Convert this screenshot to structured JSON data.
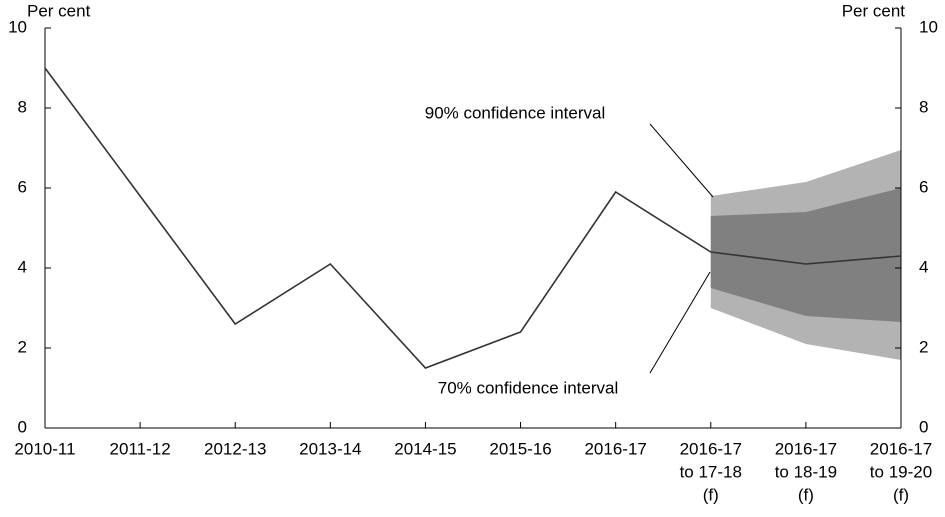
{
  "chart_data": {
    "type": "line",
    "ylabel": "Per cent",
    "y2label": "Per cent",
    "categories": [
      [
        "2010-11"
      ],
      [
        "2011-12"
      ],
      [
        "2012-13"
      ],
      [
        "2013-14"
      ],
      [
        "2014-15"
      ],
      [
        "2015-16"
      ],
      [
        "2016-17"
      ],
      [
        "2016-17",
        "to 17-18",
        "(f)"
      ],
      [
        "2016-17",
        "to 18-19",
        "(f)"
      ],
      [
        "2016-17",
        "to 19-20",
        "(f)"
      ]
    ],
    "series": [
      {
        "color": "#333333",
        "values": [
          9.0,
          5.8,
          2.6,
          4.1,
          1.5,
          2.4,
          5.9,
          4.4,
          4.1,
          4.3
        ]
      }
    ],
    "bands": [
      {
        "name": "90% confidence interval",
        "color": "#b3b3b3",
        "lower": [
          null,
          null,
          null,
          null,
          null,
          null,
          null,
          3.0,
          2.1,
          1.7
        ],
        "upper": [
          null,
          null,
          null,
          null,
          null,
          null,
          null,
          5.8,
          6.15,
          6.95
        ]
      },
      {
        "name": "70% confidence interval",
        "color": "#808080",
        "lower": [
          null,
          null,
          null,
          null,
          null,
          null,
          null,
          3.5,
          2.8,
          2.65
        ],
        "upper": [
          null,
          null,
          null,
          null,
          null,
          null,
          null,
          5.3,
          5.4,
          6.0
        ]
      }
    ],
    "ylim": [
      0,
      10
    ],
    "yticks": [
      0,
      2,
      4,
      6,
      8,
      10
    ],
    "y2lim": [
      0,
      10
    ],
    "y2ticks": [
      0,
      2,
      4,
      6,
      8,
      10
    ]
  }
}
